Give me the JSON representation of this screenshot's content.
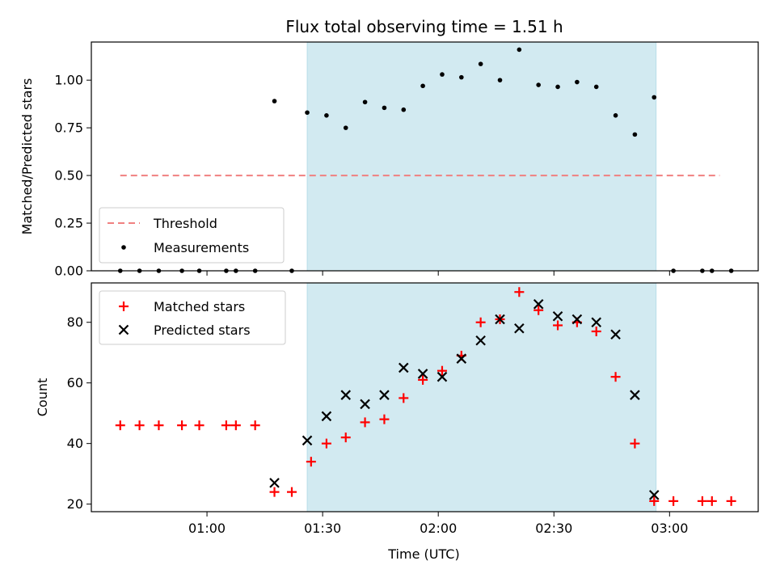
{
  "figure": {
    "title": "Flux total observing time = 1.51 h"
  },
  "chart_data": [
    {
      "type": "scatter",
      "panel": "top",
      "xlabel": "",
      "ylabel": "Matched/Predicted stars",
      "xlim": [
        0.5,
        3.3833
      ],
      "ylim": [
        0.0,
        1.2
      ],
      "yticks": [
        0.0,
        0.25,
        0.5,
        0.75,
        1.0
      ],
      "ytick_labels": [
        "0.00",
        "0.25",
        "0.50",
        "0.75",
        "1.00"
      ],
      "shaded_span": {
        "x0": 1.4333,
        "x1": 2.9417,
        "color": "#add8e6"
      },
      "legend_placement": "lower-left",
      "threshold": {
        "name": "Threshold",
        "value": 0.5,
        "x0": 0.625,
        "x1": 3.2167,
        "color": "#f08080"
      },
      "series": [
        {
          "name": "Measurements",
          "color": "#000000",
          "marker": "dot",
          "x": [
            0.625,
            0.7083,
            0.7917,
            0.8917,
            0.9667,
            1.0833,
            1.125,
            1.2083,
            1.2917,
            1.3667,
            1.4333,
            1.5167,
            1.6,
            1.6833,
            1.7667,
            1.85,
            1.9333,
            2.0167,
            2.1,
            2.1833,
            2.2667,
            2.35,
            2.4333,
            2.5167,
            2.6,
            2.6833,
            2.7667,
            2.85,
            2.9333,
            3.0167,
            3.1417,
            3.1833,
            3.2667
          ],
          "y": [
            0.0,
            0.0,
            0.0,
            0.0,
            0.0,
            0.0,
            0.0,
            0.0,
            0.89,
            0.0,
            0.83,
            0.815,
            0.75,
            0.885,
            0.855,
            0.845,
            0.97,
            1.03,
            1.015,
            1.085,
            1.0,
            1.16,
            0.975,
            0.965,
            0.99,
            0.965,
            0.815,
            0.715,
            0.91,
            0.0,
            0.0,
            0.0,
            0.0
          ]
        }
      ]
    },
    {
      "type": "scatter",
      "panel": "bottom",
      "xlabel": "Time (UTC)",
      "ylabel": "Count",
      "xlim": [
        0.5,
        3.3833
      ],
      "ylim": [
        17.5,
        93.0
      ],
      "yticks": [
        20,
        40,
        60,
        80
      ],
      "ytick_labels": [
        "20",
        "40",
        "60",
        "80"
      ],
      "xticks": [
        1.0,
        1.5,
        2.0,
        2.5,
        3.0
      ],
      "xtick_labels": [
        "01:00",
        "01:30",
        "02:00",
        "02:30",
        "03:00"
      ],
      "shaded_span": {
        "x0": 1.4333,
        "x1": 2.9417,
        "color": "#add8e6"
      },
      "legend_placement": "upper-left",
      "series": [
        {
          "name": "Matched stars",
          "color": "#ff0000",
          "marker": "plus",
          "x": [
            0.625,
            0.7083,
            0.7917,
            0.8917,
            0.9667,
            1.0833,
            1.125,
            1.2083,
            1.2917,
            1.3667,
            1.45,
            1.5167,
            1.6,
            1.6833,
            1.7667,
            1.85,
            1.9333,
            2.0167,
            2.1,
            2.1833,
            2.2667,
            2.35,
            2.4333,
            2.5167,
            2.6,
            2.6833,
            2.7667,
            2.85,
            2.9333,
            3.0167,
            3.1417,
            3.1833,
            3.2667
          ],
          "y": [
            46,
            46,
            46,
            46,
            46,
            46,
            46,
            46,
            24,
            24,
            34,
            40,
            42,
            47,
            48,
            55,
            61,
            64,
            69,
            80,
            81,
            90,
            84,
            79,
            80,
            77,
            62,
            40,
            21,
            21,
            21,
            21,
            21
          ]
        },
        {
          "name": "Predicted stars",
          "color": "#000000",
          "marker": "x",
          "x": [
            1.2917,
            1.4333,
            1.5167,
            1.6,
            1.6833,
            1.7667,
            1.85,
            1.9333,
            2.0167,
            2.1,
            2.1833,
            2.2667,
            2.35,
            2.4333,
            2.5167,
            2.6,
            2.6833,
            2.7667,
            2.85,
            2.9333
          ],
          "y": [
            27,
            41,
            49,
            56,
            53,
            56,
            65,
            63,
            62,
            68,
            74,
            81,
            78,
            86,
            82,
            81,
            80,
            76,
            56,
            23
          ]
        }
      ]
    }
  ]
}
